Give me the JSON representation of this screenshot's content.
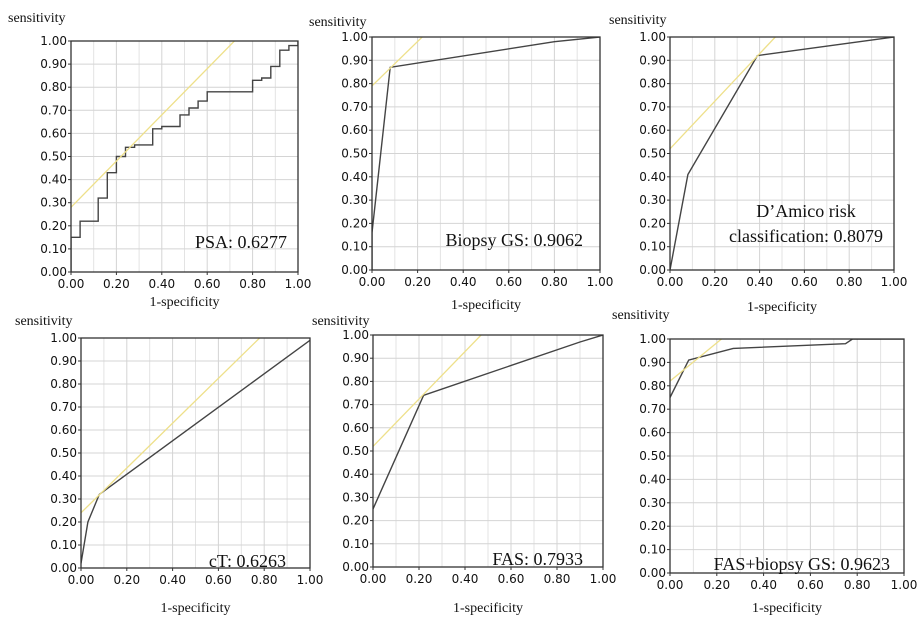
{
  "chart_data": [
    {
      "type": "line",
      "ylabel": "sensitivity",
      "xlabel": "1-specificity",
      "xlim": [
        0,
        1
      ],
      "ylim": [
        0,
        1
      ],
      "xticks": [
        "0.00",
        "0.20",
        "0.40",
        "0.60",
        "0.80",
        "1.00"
      ],
      "yticks": [
        "0.00",
        "0.10",
        "0.20",
        "0.30",
        "0.40",
        "0.50",
        "0.60",
        "0.70",
        "0.80",
        "0.90",
        "1.00"
      ],
      "annotation": [
        "PSA: 0.6277"
      ],
      "grid": true,
      "colors": {
        "roc": "#444444",
        "tangent": "#eee08a"
      },
      "series": [
        {
          "values": [
            [
              0,
              0
            ],
            [
              0,
              0.15
            ],
            [
              0.04,
              0.15
            ],
            [
              0.04,
              0.22
            ],
            [
              0.12,
              0.22
            ],
            [
              0.12,
              0.32
            ],
            [
              0.16,
              0.32
            ],
            [
              0.16,
              0.43
            ],
            [
              0.2,
              0.43
            ],
            [
              0.2,
              0.5
            ],
            [
              0.24,
              0.5
            ],
            [
              0.24,
              0.54
            ],
            [
              0.28,
              0.54
            ],
            [
              0.28,
              0.55
            ],
            [
              0.36,
              0.55
            ],
            [
              0.36,
              0.62
            ],
            [
              0.4,
              0.62
            ],
            [
              0.4,
              0.63
            ],
            [
              0.48,
              0.63
            ],
            [
              0.48,
              0.68
            ],
            [
              0.52,
              0.68
            ],
            [
              0.52,
              0.71
            ],
            [
              0.56,
              0.71
            ],
            [
              0.56,
              0.74
            ],
            [
              0.6,
              0.74
            ],
            [
              0.6,
              0.78
            ],
            [
              0.8,
              0.78
            ],
            [
              0.8,
              0.83
            ],
            [
              0.84,
              0.83
            ],
            [
              0.84,
              0.84
            ],
            [
              0.88,
              0.84
            ],
            [
              0.88,
              0.89
            ],
            [
              0.92,
              0.89
            ],
            [
              0.92,
              0.96
            ],
            [
              0.96,
              0.96
            ],
            [
              0.96,
              0.98
            ],
            [
              1,
              0.98
            ],
            [
              1,
              1
            ]
          ]
        },
        {
          "values": [
            [
              0,
              0.28
            ],
            [
              0.72,
              1
            ]
          ]
        }
      ]
    },
    {
      "type": "line",
      "ylabel": "sensitivity",
      "xlabel": "1-specificity",
      "xlim": [
        0,
        1
      ],
      "ylim": [
        0,
        1
      ],
      "xticks": [
        "0.00",
        "0.20",
        "0.40",
        "0.60",
        "0.80",
        "1.00"
      ],
      "yticks": [
        "0.00",
        "0.10",
        "0.20",
        "0.30",
        "0.40",
        "0.50",
        "0.60",
        "0.70",
        "0.80",
        "0.90",
        "1.00"
      ],
      "annotation": [
        "Biopsy GS: 0.9062"
      ],
      "grid": true,
      "colors": {
        "roc": "#444444",
        "tangent": "#eee08a"
      },
      "series": [
        {
          "values": [
            [
              0,
              0
            ],
            [
              0,
              0.16
            ],
            [
              0.08,
              0.87
            ],
            [
              0.8,
              0.98
            ],
            [
              1,
              1
            ]
          ]
        },
        {
          "values": [
            [
              0,
              0.79
            ],
            [
              0.22,
              1
            ]
          ]
        }
      ]
    },
    {
      "type": "line",
      "ylabel": "sensitivity",
      "xlabel": "1-specificity",
      "xlim": [
        0,
        1
      ],
      "ylim": [
        0,
        1
      ],
      "xticks": [
        "0.00",
        "0.20",
        "0.40",
        "0.60",
        "0.80",
        "1.00"
      ],
      "yticks": [
        "0.00",
        "0.10",
        "0.20",
        "0.30",
        "0.40",
        "0.50",
        "0.60",
        "0.70",
        "0.80",
        "0.90",
        "1.00"
      ],
      "annotation": [
        "D’Amico risk",
        "classification: 0.8079"
      ],
      "grid": true,
      "colors": {
        "roc": "#444444",
        "tangent": "#eee08a"
      },
      "series": [
        {
          "values": [
            [
              0,
              0
            ],
            [
              0.08,
              0.41
            ],
            [
              0.39,
              0.92
            ],
            [
              1,
              1
            ]
          ]
        },
        {
          "values": [
            [
              0,
              0.52
            ],
            [
              0.47,
              1
            ]
          ]
        }
      ]
    },
    {
      "type": "line",
      "ylabel": "sensitivity",
      "xlabel": "1-specificity",
      "xlim": [
        0,
        1
      ],
      "ylim": [
        0,
        1
      ],
      "xticks": [
        "0.00",
        "0.20",
        "0.40",
        "0.60",
        "0.80",
        "1.00"
      ],
      "yticks": [
        "0.00",
        "0.10",
        "0.20",
        "0.30",
        "0.40",
        "0.50",
        "0.60",
        "0.70",
        "0.80",
        "0.90",
        "1.00"
      ],
      "annotation": [
        "cT: 0.6263"
      ],
      "grid": true,
      "colors": {
        "roc": "#444444",
        "tangent": "#eee08a"
      },
      "series": [
        {
          "values": [
            [
              0,
              0.02
            ],
            [
              0.03,
              0.2
            ],
            [
              0.08,
              0.32
            ],
            [
              1,
              0.99
            ]
          ]
        },
        {
          "values": [
            [
              0,
              0.24
            ],
            [
              0.78,
              1
            ]
          ]
        }
      ]
    },
    {
      "type": "line",
      "ylabel": "sensitivity",
      "xlabel": "1-specificity",
      "xlim": [
        0,
        1
      ],
      "ylim": [
        0,
        1
      ],
      "xticks": [
        "0.00",
        "0.20",
        "0.40",
        "0.60",
        "0.80",
        "1.00"
      ],
      "yticks": [
        "0.00",
        "0.10",
        "0.20",
        "0.30",
        "0.40",
        "0.50",
        "0.60",
        "0.70",
        "0.80",
        "0.90",
        "1.00"
      ],
      "annotation": [
        "FAS: 0.7933"
      ],
      "grid": true,
      "colors": {
        "roc": "#444444",
        "tangent": "#eee08a"
      },
      "series": [
        {
          "values": [
            [
              0,
              0.25
            ],
            [
              0.22,
              0.74
            ],
            [
              0.9,
              0.97
            ],
            [
              1,
              1
            ]
          ]
        },
        {
          "values": [
            [
              0,
              0.52
            ],
            [
              0.47,
              1
            ]
          ]
        }
      ]
    },
    {
      "type": "line",
      "ylabel": "sensitivity",
      "xlabel": "1-specificity",
      "xlim": [
        0,
        1
      ],
      "ylim": [
        0,
        1
      ],
      "xticks": [
        "0.00",
        "0.20",
        "0.40",
        "0.60",
        "0.80",
        "1.00"
      ],
      "yticks": [
        "0.00",
        "0.10",
        "0.20",
        "0.30",
        "0.40",
        "0.50",
        "0.60",
        "0.70",
        "0.80",
        "0.90",
        "1.00"
      ],
      "annotation": [
        "FAS+biopsy GS: 0.9623"
      ],
      "grid": true,
      "colors": {
        "roc": "#444444",
        "tangent": "#eee08a"
      },
      "series": [
        {
          "values": [
            [
              0,
              0.75
            ],
            [
              0.08,
              0.91
            ],
            [
              0.27,
              0.96
            ],
            [
              0.75,
              0.98
            ],
            [
              0.78,
              1
            ],
            [
              1,
              1
            ]
          ]
        },
        {
          "values": [
            [
              0,
              0.82
            ],
            [
              0.22,
              1
            ]
          ]
        }
      ]
    }
  ]
}
